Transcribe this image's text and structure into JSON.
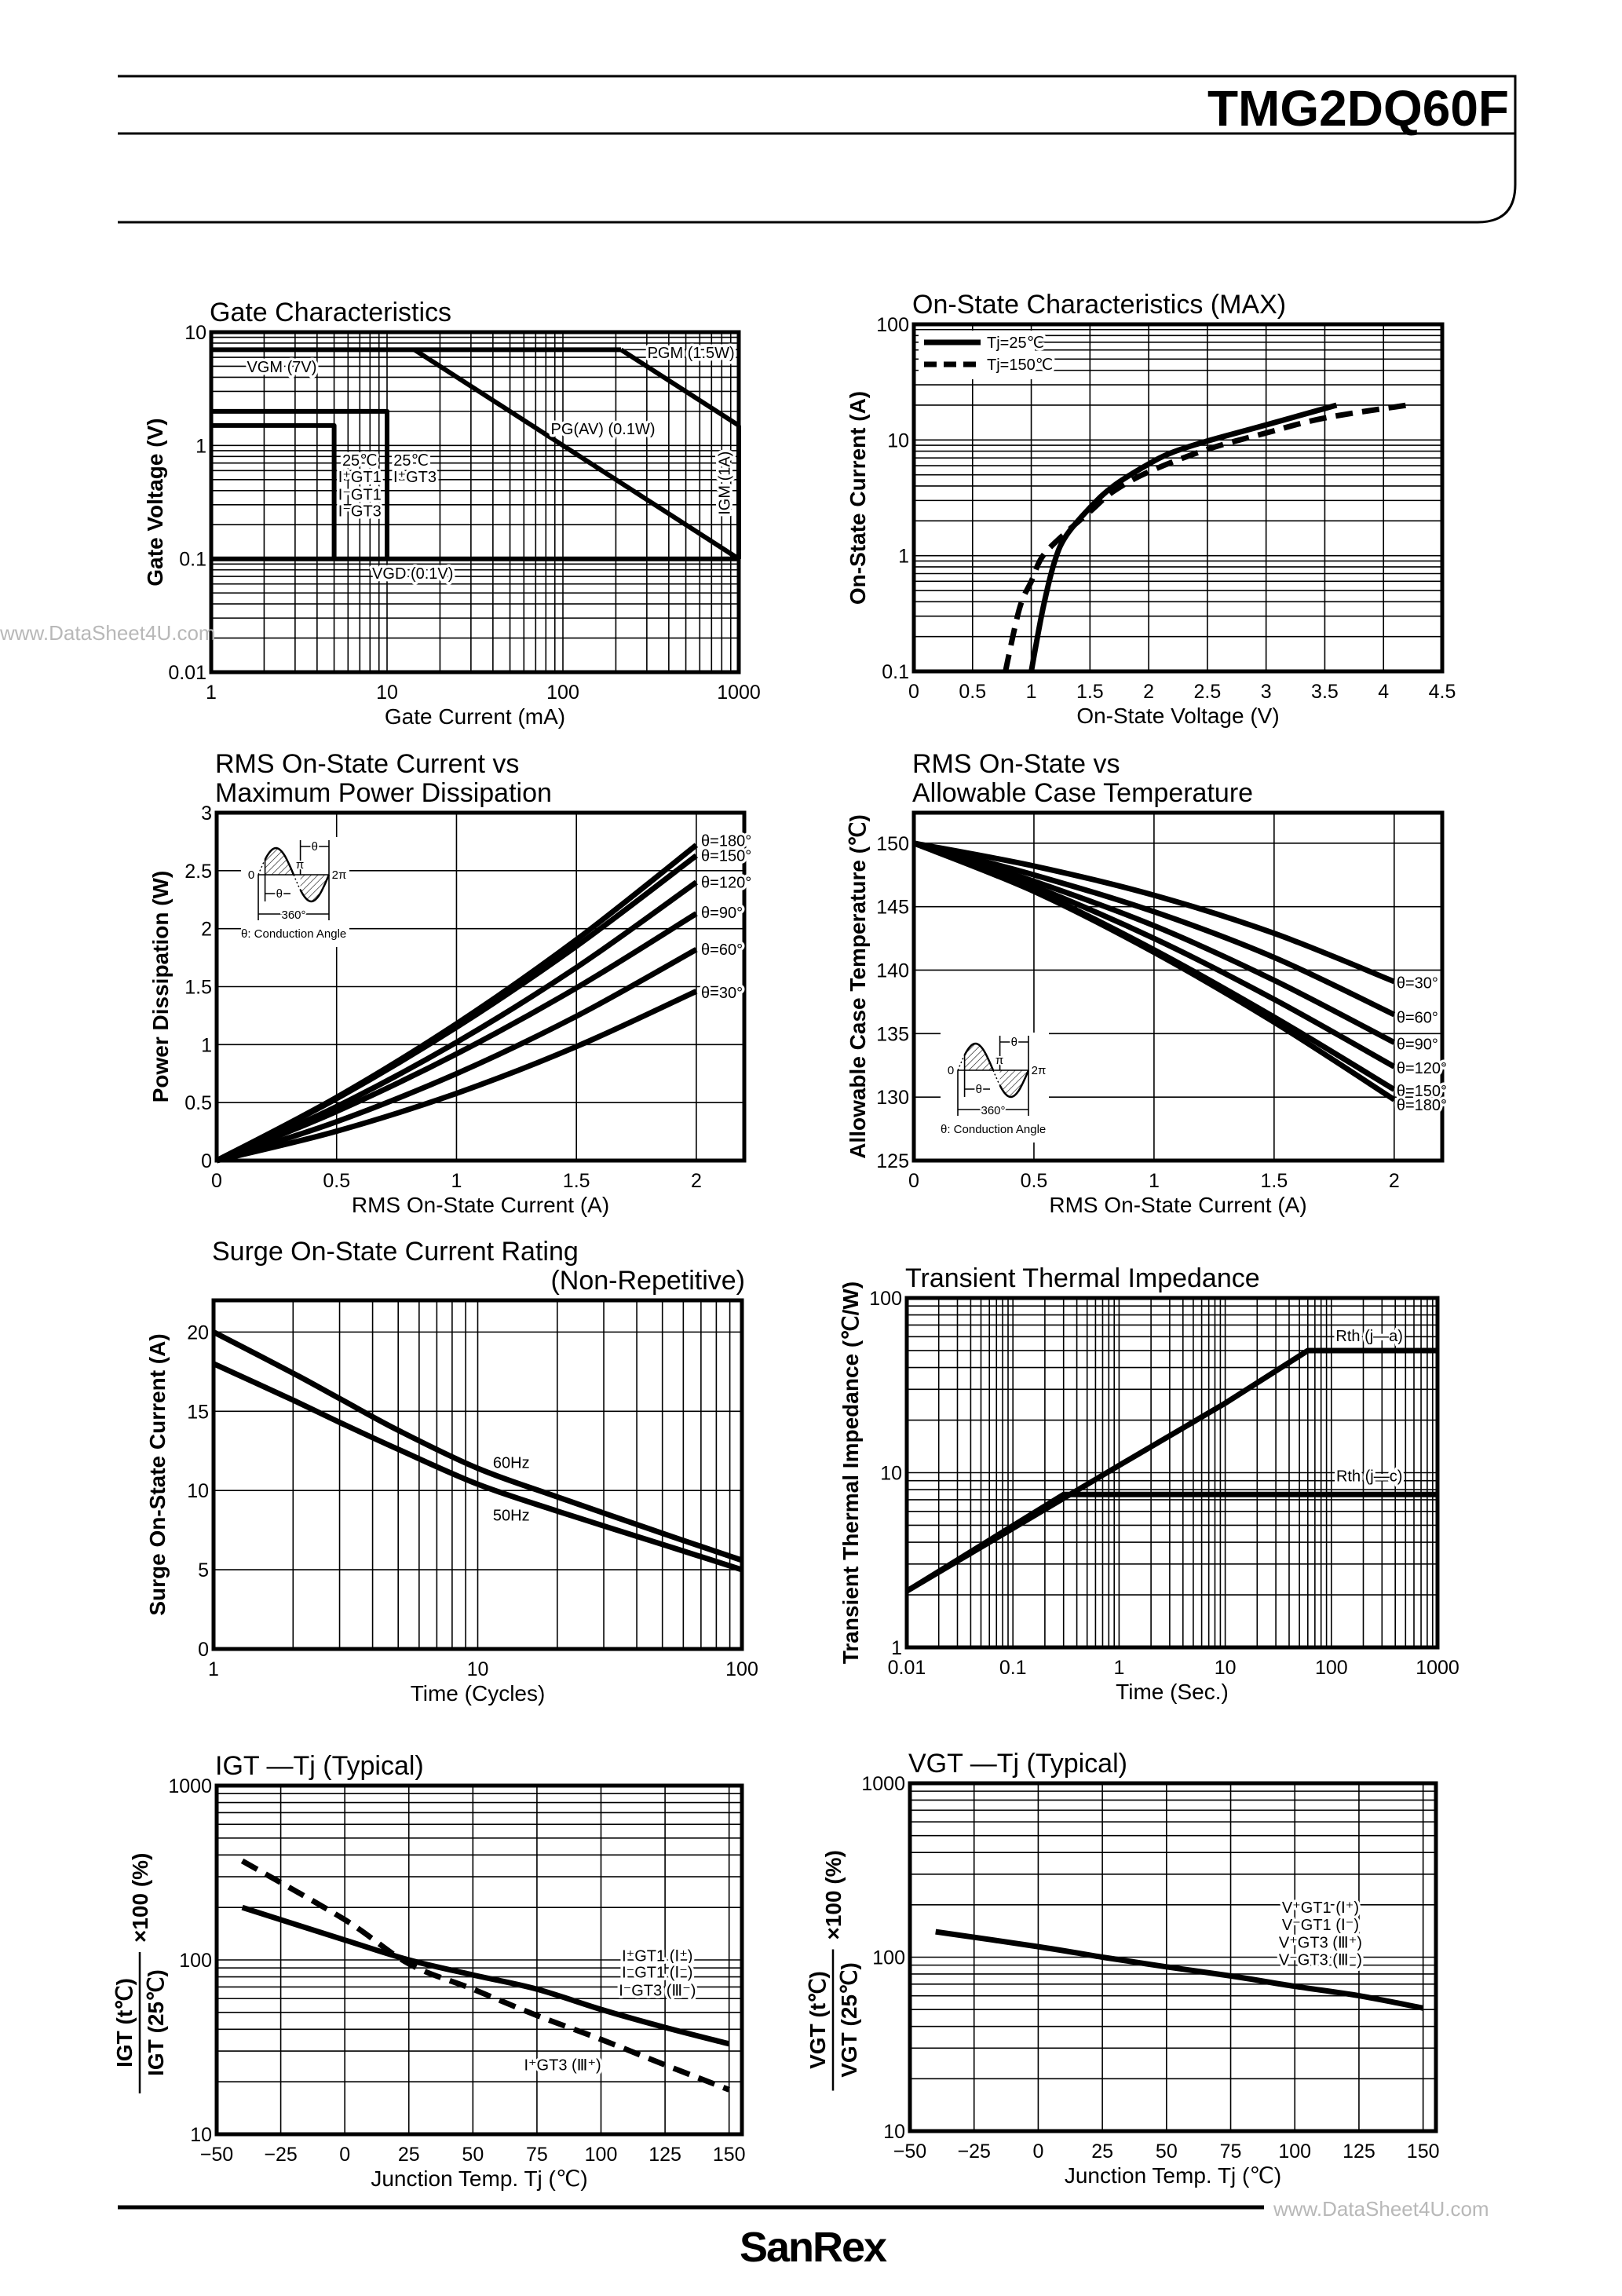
{
  "header": {
    "part_number": "TMG2DQ60F"
  },
  "footer": {
    "logo": "SanRex"
  },
  "watermarks": [
    "www.DataSheet4U.com",
    "www.DataSheet4U.com"
  ],
  "inset": {
    "zero": "0",
    "pi": "π",
    "two_pi": "2π",
    "theta": "θ",
    "period": "360°",
    "caption": "θ: Conduction Angle"
  },
  "chart_data": [
    {
      "type": "line",
      "title": [
        "Gate Characteristics"
      ],
      "xlabel": "Gate Current (mA)",
      "ylabel": "Gate Voltage (V)",
      "xscale": "log",
      "yscale": "log",
      "xlim": [
        1,
        1000
      ],
      "ylim": [
        0.01,
        10
      ],
      "xticks": [
        "1",
        "10",
        "100",
        "1000"
      ],
      "yticks": [
        "0.01",
        "0.1",
        "1",
        "10"
      ],
      "grid": true,
      "series": [
        {
          "style": "solid",
          "points": [
            [
              1,
              7
            ],
            [
              214,
              7
            ]
          ]
        },
        {
          "style": "solid",
          "points": [
            [
              214,
              7
            ],
            [
              1000,
              1.5
            ]
          ]
        },
        {
          "style": "solid",
          "points": [
            [
              14.3,
              7
            ],
            [
              1000,
              0.1
            ]
          ]
        },
        {
          "style": "solid",
          "points": [
            [
              1000,
              1.5
            ],
            [
              1000,
              0.1
            ]
          ]
        },
        {
          "style": "solid",
          "points": [
            [
              1,
              0.1
            ],
            [
              1000,
              0.1
            ]
          ]
        },
        {
          "style": "solid",
          "points": [
            [
              1,
              1.5
            ],
            [
              5,
              1.5
            ],
            [
              5,
              0.1
            ]
          ]
        },
        {
          "style": "solid",
          "points": [
            [
              1,
              2
            ],
            [
              10,
              2
            ],
            [
              10,
              0.1
            ]
          ]
        }
      ],
      "annotations": [
        "VGM (7V)",
        "PGM (1.5W)",
        "PG(AV) (0.1W)",
        "IGM (1A)",
        "VGD (0.1V)",
        "25℃",
        "I⁺GT1",
        "I⁻GT1",
        "I⁻GT3",
        "25℃",
        "I⁺GT3"
      ]
    },
    {
      "type": "line",
      "title": [
        "On-State Characteristics (MAX)"
      ],
      "xlabel": "On-State Voltage (V)",
      "ylabel": "On-State Current (A)",
      "xscale": "linear",
      "yscale": "log",
      "xlim": [
        0,
        4.5
      ],
      "ylim": [
        0.1,
        100
      ],
      "xticks": [
        "0",
        "0.5",
        "1",
        "1.5",
        "2",
        "2.5",
        "3",
        "3.5",
        "4",
        "4.5"
      ],
      "yticks": [
        "0.1",
        "1",
        "10",
        "100"
      ],
      "grid": true,
      "legend": "top-left",
      "series": [
        {
          "name": "Tj=25℃",
          "style": "solid",
          "points": [
            [
              1.0,
              0.1
            ],
            [
              1.1,
              0.35
            ],
            [
              1.2,
              0.9
            ],
            [
              1.3,
              1.5
            ],
            [
              1.5,
              2.6
            ],
            [
              1.7,
              4.0
            ],
            [
              2.0,
              6.2
            ],
            [
              2.2,
              7.8
            ],
            [
              2.5,
              9.8
            ],
            [
              3.0,
              13.5
            ],
            [
              3.6,
              20
            ]
          ]
        },
        {
          "name": "Tj=150℃",
          "style": "dashed",
          "points": [
            [
              0.78,
              0.1
            ],
            [
              0.9,
              0.35
            ],
            [
              1.0,
              0.6
            ],
            [
              1.1,
              1.0
            ],
            [
              1.3,
              1.6
            ],
            [
              1.5,
              2.4
            ],
            [
              1.7,
              3.6
            ],
            [
              2.0,
              5.3
            ],
            [
              2.5,
              8.3
            ],
            [
              3.0,
              11.5
            ],
            [
              3.5,
              15.5
            ],
            [
              4.2,
              20
            ]
          ]
        }
      ],
      "annotations": []
    },
    {
      "type": "line",
      "title": [
        "RMS On-State Current vs",
        "Maximum Power Dissipation"
      ],
      "xlabel": "RMS On-State Current (A)",
      "ylabel": "Power Dissipation (W)",
      "xscale": "linear",
      "yscale": "linear",
      "xlim": [
        0,
        2.2
      ],
      "ylim": [
        0,
        3
      ],
      "xticks": [
        "0",
        "0.5",
        "1",
        "1.5",
        "2"
      ],
      "yticks": [
        "0",
        "0.5",
        "1",
        "1.5",
        "2",
        "2.5",
        "3"
      ],
      "grid": true,
      "series": [
        {
          "style": "solid",
          "points": [
            [
              0,
              0
            ],
            [
              0.5,
              0.545
            ],
            [
              1,
              1.18
            ],
            [
              1.5,
              1.905
            ],
            [
              2,
              2.72
            ]
          ]
        },
        {
          "style": "solid",
          "points": [
            [
              0,
              0
            ],
            [
              0.5,
              0.534
            ],
            [
              1,
              1.15
            ],
            [
              1.5,
              1.849
            ],
            [
              2,
              2.63
            ]
          ]
        },
        {
          "style": "solid",
          "points": [
            [
              0,
              0
            ],
            [
              0.5,
              0.465
            ],
            [
              1,
              1.02
            ],
            [
              1.5,
              1.665
            ],
            [
              2,
              2.4
            ]
          ]
        },
        {
          "style": "solid",
          "points": [
            [
              0,
              0
            ],
            [
              0.5,
              0.424
            ],
            [
              1,
              0.92
            ],
            [
              1.5,
              1.489
            ],
            [
              2,
              2.13
            ]
          ]
        },
        {
          "style": "solid",
          "points": [
            [
              0,
              0
            ],
            [
              0.5,
              0.335
            ],
            [
              1,
              0.75
            ],
            [
              1.5,
              1.245
            ],
            [
              2,
              1.82
            ]
          ]
        },
        {
          "style": "solid",
          "points": [
            [
              0,
              0
            ],
            [
              0.5,
              0.253
            ],
            [
              1,
              0.58
            ],
            [
              1.5,
              0.983
            ],
            [
              2,
              1.46
            ]
          ]
        }
      ],
      "annotations": [
        "θ=180°",
        "θ=150°",
        "θ=120°",
        "θ=90°",
        "θ=60°",
        "θ=30°"
      ]
    },
    {
      "type": "line",
      "title": [
        "RMS On-State vs",
        "Allowable Case Temperature"
      ],
      "xlabel": "RMS On-State Current (A)",
      "ylabel": "Allowable Case Temperature (℃)",
      "xscale": "linear",
      "yscale": "linear",
      "xlim": [
        0,
        2.2
      ],
      "ylim": [
        125,
        152.4
      ],
      "xticks": [
        "0",
        "0.5",
        "1",
        "1.5",
        "2"
      ],
      "yticks": [
        "125",
        "130",
        "135",
        "140",
        "145",
        "150"
      ],
      "grid": true,
      "series": [
        {
          "style": "solid",
          "points": [
            [
              0,
              150
            ],
            [
              0.5,
              148.2
            ],
            [
              1,
              145.9
            ],
            [
              1.5,
              142.9
            ],
            [
              2,
              139.1
            ]
          ]
        },
        {
          "style": "solid",
          "points": [
            [
              0,
              150
            ],
            [
              0.5,
              147.5
            ],
            [
              1,
              144.6
            ],
            [
              1.5,
              141.0
            ],
            [
              2,
              136.5
            ]
          ]
        },
        {
          "style": "solid",
          "points": [
            [
              0,
              150
            ],
            [
              0.5,
              147.0
            ],
            [
              1,
              143.5
            ],
            [
              1.5,
              139.2
            ],
            [
              2,
              134.3
            ]
          ]
        },
        {
          "style": "solid",
          "points": [
            [
              0,
              150
            ],
            [
              0.5,
              146.6
            ],
            [
              1,
              142.5
            ],
            [
              1.5,
              137.7
            ],
            [
              2,
              132.4
            ]
          ]
        },
        {
          "style": "solid",
          "points": [
            [
              0,
              150
            ],
            [
              0.5,
              146.3
            ],
            [
              1,
              141.6
            ],
            [
              1.5,
              136.3
            ],
            [
              2,
              130.6
            ]
          ]
        },
        {
          "style": "solid",
          "points": [
            [
              0,
              150
            ],
            [
              0.5,
              146.2
            ],
            [
              1,
              141.4
            ],
            [
              1.5,
              135.9
            ],
            [
              2,
              129.8
            ]
          ]
        }
      ],
      "annotations": [
        "θ=30°",
        "θ=60°",
        "θ=90°",
        "θ=120°",
        "θ=150°",
        "θ=180°"
      ]
    },
    {
      "type": "line",
      "title": [
        "Surge On-State Current Rating",
        "(Non-Repetitive)"
      ],
      "xlabel": "Time (Cycles)",
      "ylabel": "Surge On-State Current (A)",
      "xscale": "log",
      "yscale": "linear",
      "xlim": [
        1,
        100
      ],
      "ylim": [
        0,
        22
      ],
      "xticks": [
        "1",
        "10",
        "100"
      ],
      "yticks": [
        "0",
        "5",
        "10",
        "15",
        "20"
      ],
      "grid": true,
      "series": [
        {
          "style": "solid",
          "points": [
            [
              1,
              20
            ],
            [
              2,
              17.4
            ],
            [
              3,
              15.8
            ],
            [
              5,
              13.8
            ],
            [
              10,
              11.4
            ],
            [
              20,
              9.6
            ],
            [
              50,
              7.3
            ],
            [
              100,
              5.6
            ]
          ]
        },
        {
          "style": "solid",
          "points": [
            [
              1,
              18
            ],
            [
              2,
              15.7
            ],
            [
              3,
              14.3
            ],
            [
              5,
              12.6
            ],
            [
              10,
              10.4
            ],
            [
              20,
              8.7
            ],
            [
              50,
              6.6
            ],
            [
              100,
              5.0
            ]
          ]
        }
      ],
      "annotations": [
        "60Hz",
        "50Hz"
      ]
    },
    {
      "type": "line",
      "title": [
        "Transient Thermal Impedance"
      ],
      "xlabel": "Time (Sec.)",
      "ylabel": "Transient Thermal Impedance (℃/W)",
      "xscale": "log",
      "yscale": "log",
      "xlim": [
        0.01,
        1000
      ],
      "ylim": [
        1,
        100
      ],
      "xticks": [
        "0.01",
        "0.1",
        "1",
        "10",
        "100",
        "1000"
      ],
      "yticks": [
        "1",
        "10",
        "100"
      ],
      "grid": true,
      "series": [
        {
          "style": "solid",
          "points": [
            [
              0.01,
              2.1
            ],
            [
              1,
              11
            ],
            [
              10,
              25
            ],
            [
              60,
              50
            ],
            [
              1000,
              50
            ]
          ]
        },
        {
          "style": "solid",
          "points": [
            [
              0.01,
              2.1
            ],
            [
              0.3,
              7.5
            ],
            [
              1000,
              7.5
            ]
          ]
        }
      ],
      "annotations": [
        "Rth (j—a)",
        "Rth (j—c)"
      ]
    },
    {
      "type": "line",
      "title": [
        "IGT —Tj (Typical)"
      ],
      "xlabel": "Junction Temp. Tj (℃)",
      "ylabel": {
        "numerator": "IGT (t℃)",
        "denominator": "IGT (25℃)",
        "suffix": "×100 (%)"
      },
      "xscale": "linear",
      "yscale": "log",
      "xlim": [
        -50,
        155
      ],
      "ylim": [
        10,
        1000
      ],
      "xticks": [
        "−50",
        "−25",
        "0",
        "25",
        "50",
        "75",
        "100",
        "125",
        "150"
      ],
      "yticks": [
        "10",
        "100",
        "1000"
      ],
      "grid": true,
      "series": [
        {
          "style": "solid",
          "points": [
            [
              -40,
              200
            ],
            [
              0,
              130
            ],
            [
              25,
              100
            ],
            [
              50,
              82
            ],
            [
              75,
              68
            ],
            [
              100,
              52
            ],
            [
              125,
              41
            ],
            [
              150,
              33
            ]
          ]
        },
        {
          "style": "dashed",
          "points": [
            [
              -40,
              370
            ],
            [
              0,
              170
            ],
            [
              25,
              95
            ],
            [
              50,
              68
            ],
            [
              75,
              48
            ],
            [
              100,
              35
            ],
            [
              125,
              25
            ],
            [
              150,
              18
            ]
          ]
        }
      ],
      "annotations": [
        "I⁺GT1 (Ⅰ⁺)",
        "I⁻GT1 (Ⅰ⁻)",
        "I⁻GT3 (Ⅲ⁻)",
        "I⁺GT3 (Ⅲ⁺)"
      ]
    },
    {
      "type": "line",
      "title": [
        "VGT —Tj (Typical)"
      ],
      "xlabel": "Junction Temp. Tj (℃)",
      "ylabel": {
        "numerator": "VGT (t℃)",
        "denominator": "VGT (25℃)",
        "suffix": "×100 (%)"
      },
      "xscale": "linear",
      "yscale": "log",
      "xlim": [
        -50,
        155
      ],
      "ylim": [
        10,
        1000
      ],
      "xticks": [
        "−50",
        "−25",
        "0",
        "25",
        "50",
        "75",
        "100",
        "125",
        "150"
      ],
      "yticks": [
        "10",
        "100",
        "1000"
      ],
      "grid": true,
      "series": [
        {
          "style": "solid",
          "points": [
            [
              -40,
              140
            ],
            [
              0,
              115
            ],
            [
              25,
              100
            ],
            [
              50,
              88
            ],
            [
              75,
              78
            ],
            [
              100,
              68
            ],
            [
              125,
              60
            ],
            [
              150,
              51
            ]
          ]
        }
      ],
      "annotations": [
        "V⁺GT1 (Ⅰ⁺)",
        "V⁻GT1 (Ⅰ⁻)",
        "V⁺GT3 (Ⅲ⁺)",
        "V⁻GT3 (Ⅲ⁻)"
      ]
    }
  ]
}
